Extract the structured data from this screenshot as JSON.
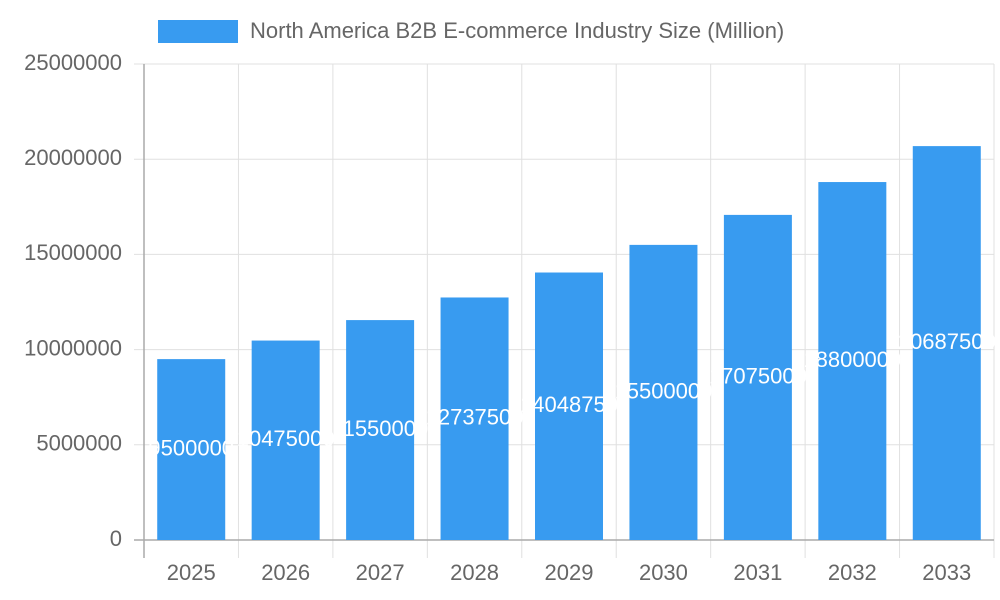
{
  "chart_data": {
    "type": "bar",
    "series": [
      {
        "name": "North America B2B E-commerce Industry Size (Million)",
        "color": "#389bf0",
        "values": [
          9500000,
          10475000,
          11550000,
          12737500,
          14048750,
          15500000,
          17075000,
          18800000,
          20687500
        ]
      }
    ],
    "categories": [
      "2025",
      "2026",
      "2027",
      "2028",
      "2029",
      "2030",
      "2031",
      "2032",
      "2033"
    ],
    "ylim": [
      0,
      25000000
    ],
    "yticks": [
      0,
      5000000,
      10000000,
      15000000,
      20000000,
      25000000
    ],
    "grid": true
  }
}
